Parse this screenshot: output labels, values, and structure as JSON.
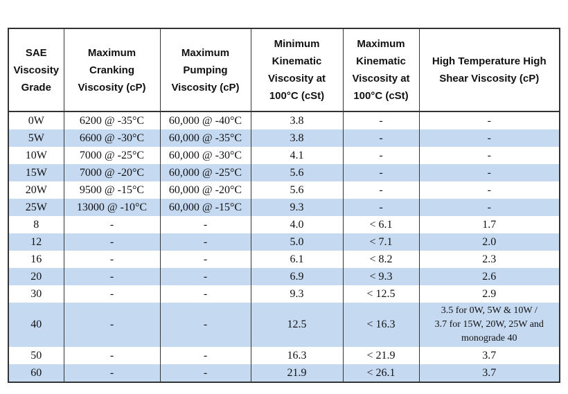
{
  "headers": [
    "SAE\nViscosity\nGrade",
    "Maximum\nCranking\nViscosity (cP)",
    "Maximum\nPumping\nViscosity (cP)",
    "Minimum\nKinematic\nViscosity at\n100°C (cSt)",
    "Maximum\nKinematic\nViscosity at\n100°C (cSt)",
    "High Temperature High\nShear Viscosity (cP)"
  ],
  "rows": [
    {
      "grade": "0W",
      "cranking": "6200 @ -35°C",
      "pumping": "60,000 @ -40°C",
      "min_kv": "3.8",
      "max_kv": "-",
      "hths": "-"
    },
    {
      "grade": "5W",
      "cranking": "6600 @ -30°C",
      "pumping": "60,000 @ -35°C",
      "min_kv": "3.8",
      "max_kv": "-",
      "hths": "-"
    },
    {
      "grade": "10W",
      "cranking": "7000 @ -25°C",
      "pumping": "60,000 @ -30°C",
      "min_kv": "4.1",
      "max_kv": "-",
      "hths": "-"
    },
    {
      "grade": "15W",
      "cranking": "7000 @ -20°C",
      "pumping": "60,000 @ -25°C",
      "min_kv": "5.6",
      "max_kv": "-",
      "hths": "-"
    },
    {
      "grade": "20W",
      "cranking": "9500 @ -15°C",
      "pumping": "60,000 @ -20°C",
      "min_kv": "5.6",
      "max_kv": "-",
      "hths": "-"
    },
    {
      "grade": "25W",
      "cranking": "13000 @ -10°C",
      "pumping": "60,000 @ -15°C",
      "min_kv": "9.3",
      "max_kv": "-",
      "hths": "-"
    },
    {
      "grade": "8",
      "cranking": "-",
      "pumping": "-",
      "min_kv": "4.0",
      "max_kv": "< 6.1",
      "hths": "1.7"
    },
    {
      "grade": "12",
      "cranking": "-",
      "pumping": "-",
      "min_kv": "5.0",
      "max_kv": "< 7.1",
      "hths": "2.0"
    },
    {
      "grade": "16",
      "cranking": "-",
      "pumping": "-",
      "min_kv": "6.1",
      "max_kv": "< 8.2",
      "hths": "2.3"
    },
    {
      "grade": "20",
      "cranking": "-",
      "pumping": "-",
      "min_kv": "6.9",
      "max_kv": "< 9.3",
      "hths": "2.6"
    },
    {
      "grade": "30",
      "cranking": "-",
      "pumping": "-",
      "min_kv": "9.3",
      "max_kv": "< 12.5",
      "hths": "2.9"
    },
    {
      "grade": "40",
      "cranking": "-",
      "pumping": "-",
      "min_kv": "12.5",
      "max_kv": "< 16.3",
      "hths": "3.5 for 0W, 5W & 10W /\n3.7 for 15W, 20W, 25W and\nmonograde 40"
    },
    {
      "grade": "50",
      "cranking": "-",
      "pumping": "-",
      "min_kv": "16.3",
      "max_kv": "< 21.9",
      "hths": "3.7"
    },
    {
      "grade": "60",
      "cranking": "-",
      "pumping": "-",
      "min_kv": "21.9",
      "max_kv": "< 26.1",
      "hths": "3.7"
    }
  ],
  "colors": {
    "stripe": "#c5d9f1",
    "border": "#333333",
    "background": "#ffffff"
  }
}
